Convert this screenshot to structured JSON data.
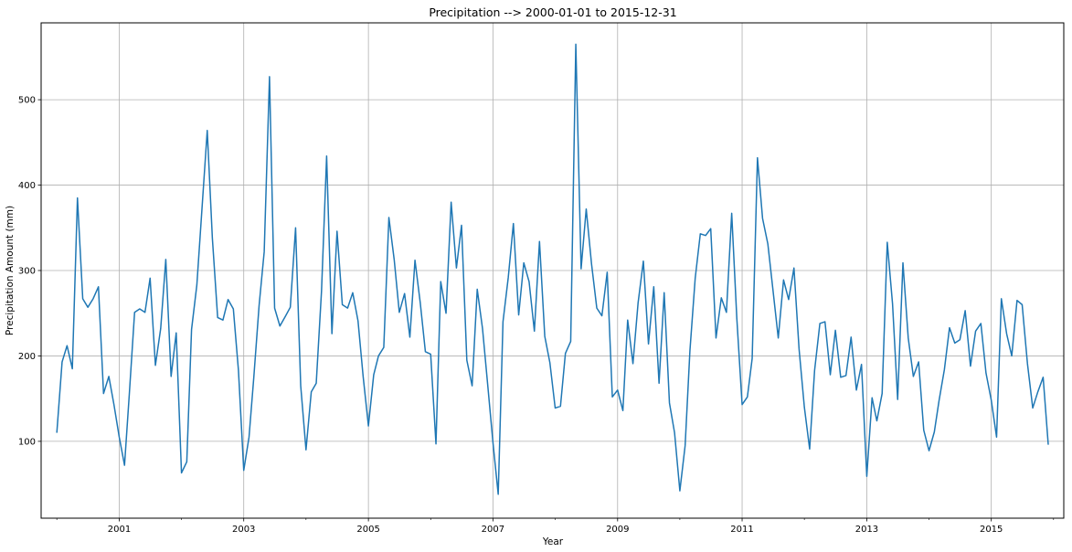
{
  "chart_data": {
    "type": "line",
    "title": "Precipitation --> 2000-01-01 to  2015-12-31",
    "xlabel": "Year",
    "ylabel": "Precipitation Amount (mm)",
    "xlim": [
      "1999-10-01",
      "2016-03-01"
    ],
    "ylim": [
      10,
      590
    ],
    "grid": true,
    "x_ticks": [
      {
        "date": "2001-01-01",
        "label": "2001"
      },
      {
        "date": "2003-01-01",
        "label": "2003"
      },
      {
        "date": "2005-01-01",
        "label": "2005"
      },
      {
        "date": "2007-01-01",
        "label": "2007"
      },
      {
        "date": "2009-01-01",
        "label": "2009"
      },
      {
        "date": "2011-01-01",
        "label": "2011"
      },
      {
        "date": "2013-01-01",
        "label": "2013"
      },
      {
        "date": "2015-01-01",
        "label": "2015"
      }
    ],
    "x_minor_ticks": [
      "2000-01-01",
      "2002-01-01",
      "2004-01-01",
      "2006-01-01",
      "2008-01-01",
      "2010-01-01",
      "2012-01-01",
      "2014-01-01",
      "2016-01-01"
    ],
    "y_ticks": [
      100,
      200,
      300,
      400,
      500
    ],
    "series": [
      {
        "color": "#1f77b4",
        "start": "2000-01",
        "frequency": "monthly",
        "values": [
          110,
          193,
          212,
          185,
          385,
          267,
          257,
          267,
          281,
          156,
          176,
          143,
          105,
          72,
          155,
          251,
          255,
          251,
          291,
          189,
          232,
          313,
          176,
          227,
          63,
          76,
          231,
          283,
          372,
          464,
          338,
          245,
          242,
          266,
          255,
          183,
          66,
          105,
          175,
          259,
          322,
          527,
          256,
          235,
          246,
          257,
          350,
          165,
          90,
          158,
          168,
          276,
          434,
          226,
          346,
          260,
          256,
          274,
          241,
          176,
          118,
          178,
          200,
          210,
          362,
          313,
          251,
          273,
          222,
          312,
          262,
          205,
          202,
          97,
          287,
          250,
          380,
          303,
          353,
          195,
          165,
          278,
          232,
          167,
          99,
          38,
          240,
          292,
          355,
          248,
          309,
          287,
          229,
          334,
          223,
          192,
          139,
          141,
          203,
          217,
          565,
          302,
          372,
          308,
          256,
          247,
          298,
          152,
          160,
          136,
          242,
          191,
          262,
          311,
          214,
          281,
          168,
          274,
          145,
          110,
          42,
          95,
          206,
          291,
          343,
          341,
          349,
          221,
          268,
          251,
          367,
          244,
          143,
          152,
          197,
          432,
          361,
          331,
          277,
          221,
          289,
          266,
          303,
          208,
          140,
          91,
          183,
          238,
          240,
          178,
          230,
          175,
          177,
          222,
          160,
          190,
          59,
          151,
          124,
          156,
          333,
          261,
          149,
          309,
          221,
          176,
          193,
          113,
          89,
          111,
          148,
          184,
          233,
          215,
          219,
          253,
          188,
          229,
          238,
          180,
          148,
          105,
          267,
          226,
          200,
          265,
          260,
          191,
          139,
          158,
          175,
          96
        ]
      }
    ]
  }
}
